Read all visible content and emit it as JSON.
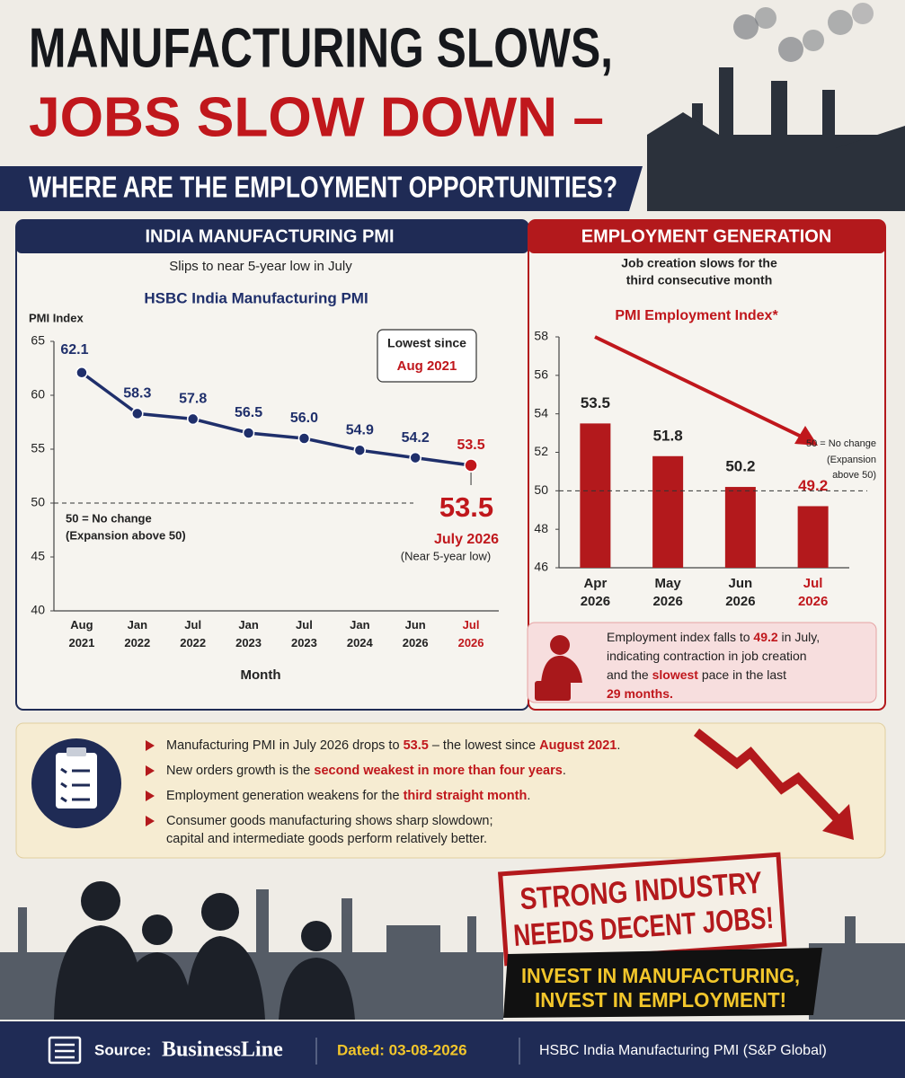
{
  "header": {
    "line1": "MANUFACTURING SLOWS,",
    "line2": "JOBS SLOW DOWN –",
    "line3": "WHERE ARE THE EMPLOYMENT OPPORTUNITIES?"
  },
  "chart_data": [
    {
      "type": "line",
      "panel_title": "INDIA MANUFACTURING PMI",
      "subtitle": "Slips to near 5-year low in July",
      "title": "HSBC India Manufacturing PMI",
      "y_label": "PMI Index",
      "x_label": "Month",
      "categories": [
        "Aug 2021",
        "Jan 2022",
        "Jul 2022",
        "Jan 2023",
        "Jul 2023",
        "Jan 2024",
        "Jun 2026",
        "Jul 2026"
      ],
      "values": [
        62.1,
        58.3,
        57.8,
        56.5,
        56.0,
        54.9,
        54.2,
        53.5
      ],
      "value_labels": [
        "62.1",
        "58.3",
        "57.8",
        "56.5",
        "56.0",
        "54.9",
        "54.2",
        "53.5"
      ],
      "color": "#1f2f6b",
      "highlight_color": "#c0171c",
      "ylim": [
        40,
        65
      ],
      "yticks": [
        40,
        45,
        50,
        55,
        60,
        65
      ],
      "reference_line": 50,
      "reference_note": [
        "50 = No change",
        "(Expansion above 50)"
      ],
      "box_note": [
        "Lowest since",
        "Aug 2021"
      ],
      "callout": [
        "53.5",
        "July 2026",
        "(Near 5-year low)"
      ]
    },
    {
      "type": "bar",
      "panel_title": "EMPLOYMENT GENERATION",
      "subtitle": [
        "Job creation slows for the",
        "third consecutive month"
      ],
      "title": "PMI Employment Index*",
      "categories": [
        "Apr 2026",
        "May 2026",
        "Jun 2026",
        "Jul 2026"
      ],
      "values": [
        53.5,
        51.8,
        50.2,
        49.2
      ],
      "color": "#b3191c",
      "highlight_color": "#c0171c",
      "ylim": [
        46,
        58
      ],
      "yticks": [
        46,
        48,
        50,
        52,
        54,
        56,
        58
      ],
      "reference_line": 50,
      "reference_note": [
        "50 = No change",
        "(Expansion",
        "above 50)"
      ]
    }
  ],
  "callout": [
    [
      {
        "text": "Employment index falls to "
      },
      {
        "text": "49.2",
        "em": true
      },
      {
        "text": " in July,"
      }
    ],
    [
      {
        "text": "indicating contraction in job creation"
      }
    ],
    [
      {
        "text": "and the "
      },
      {
        "text": "slowest",
        "em": true
      },
      {
        "text": " pace in the last"
      }
    ],
    [
      {
        "text": "29 months.",
        "em": true
      }
    ]
  ],
  "bullets": [
    [
      [
        {
          "text": "Manufacturing PMI in July 2026 drops to "
        },
        {
          "text": "53.5",
          "em": true
        },
        {
          "text": " – the lowest since "
        },
        {
          "text": "August 2021",
          "em": true
        },
        {
          "text": "."
        }
      ]
    ],
    [
      [
        {
          "text": "New orders growth is the "
        },
        {
          "text": "second weakest in more than four years",
          "em": true
        },
        {
          "text": "."
        }
      ]
    ],
    [
      [
        {
          "text": "Employment generation weakens for the "
        },
        {
          "text": "third straight month",
          "em": true
        },
        {
          "text": "."
        }
      ]
    ],
    [
      [
        {
          "text": "Consumer goods manufacturing shows sharp slowdown;"
        }
      ],
      [
        {
          "text": "capital and intermediate goods perform relatively better."
        }
      ]
    ]
  ],
  "stamp": [
    "STRONG INDUSTRY",
    "NEEDS DECENT JOBS!"
  ],
  "banner": [
    "INVEST IN MANUFACTURING,",
    "INVEST IN EMPLOYMENT!"
  ],
  "footer": {
    "source_label": "Source:",
    "source": "BusinessLine",
    "dated": "Dated: 03-08-2026",
    "reference": "HSBC India Manufacturing PMI (S&P Global)"
  }
}
